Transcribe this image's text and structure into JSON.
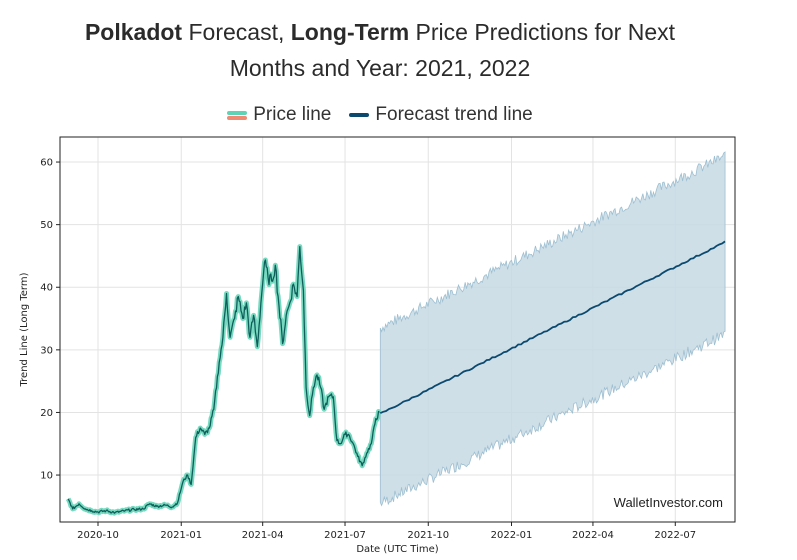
{
  "title": {
    "part1_bold": "Polkadot",
    "part2": " Forecast, ",
    "part3_bold": "Long-Term",
    "part4": " Price Predictions for Next",
    "line2": "Months and Year: 2021, 2022"
  },
  "legend": {
    "price_label": "Price line",
    "forecast_label": "Forecast trend line"
  },
  "colors": {
    "price_line": "#0f5e5a",
    "price_glow": "#5fd3b5",
    "forecast_line": "#0b4a6e",
    "band_fill": "#c7d9e4",
    "band_edge": "#9dbfd1"
  },
  "chart_data": {
    "type": "line",
    "xlabel": "Date (UTC Time)",
    "ylabel": "Trend Line (Long Term)",
    "ylim": [
      2.5,
      64
    ],
    "xlim": [
      "2020-08-20",
      "2022-09-05"
    ],
    "grid": true,
    "legend_position": "top",
    "y_ticks": [
      10,
      20,
      30,
      40,
      50,
      60
    ],
    "x_ticks": [
      {
        "date": "2020-10-01",
        "label": "2020-10"
      },
      {
        "date": "2021-01-01",
        "label": "2021-01"
      },
      {
        "date": "2021-04-01",
        "label": "2021-04"
      },
      {
        "date": "2021-07-01",
        "label": "2021-07"
      },
      {
        "date": "2021-10-01",
        "label": "2021-10"
      },
      {
        "date": "2022-01-01",
        "label": "2022-01"
      },
      {
        "date": "2022-04-01",
        "label": "2022-04"
      },
      {
        "date": "2022-07-01",
        "label": "2022-07"
      }
    ],
    "series": [
      {
        "name": "Price line",
        "points": [
          [
            "2020-08-29",
            6.2
          ],
          [
            "2020-09-03",
            4.6
          ],
          [
            "2020-09-10",
            5.4
          ],
          [
            "2020-09-17",
            4.6
          ],
          [
            "2020-09-24",
            4.3
          ],
          [
            "2020-10-01",
            4.1
          ],
          [
            "2020-10-10",
            4.3
          ],
          [
            "2020-10-20",
            4.0
          ],
          [
            "2020-10-31",
            4.3
          ],
          [
            "2020-11-10",
            4.5
          ],
          [
            "2020-11-20",
            4.6
          ],
          [
            "2020-11-27",
            5.4
          ],
          [
            "2020-12-05",
            5.0
          ],
          [
            "2020-12-15",
            5.2
          ],
          [
            "2020-12-22",
            4.9
          ],
          [
            "2020-12-28",
            5.6
          ],
          [
            "2021-01-03",
            9.0
          ],
          [
            "2021-01-08",
            10.0
          ],
          [
            "2021-01-12",
            8.5
          ],
          [
            "2021-01-17",
            16.0
          ],
          [
            "2021-01-22",
            17.5
          ],
          [
            "2021-01-27",
            16.5
          ],
          [
            "2021-02-01",
            17.5
          ],
          [
            "2021-02-06",
            20.5
          ],
          [
            "2021-02-12",
            28.0
          ],
          [
            "2021-02-16",
            32.0
          ],
          [
            "2021-02-20",
            39.0
          ],
          [
            "2021-02-24",
            32.0
          ],
          [
            "2021-03-01",
            35.0
          ],
          [
            "2021-03-05",
            38.5
          ],
          [
            "2021-03-10",
            35.0
          ],
          [
            "2021-03-14",
            37.5
          ],
          [
            "2021-03-18",
            32.0
          ],
          [
            "2021-03-22",
            35.5
          ],
          [
            "2021-03-26",
            30.5
          ],
          [
            "2021-03-30",
            37.5
          ],
          [
            "2021-04-03",
            44.0
          ],
          [
            "2021-04-07",
            41.5
          ],
          [
            "2021-04-11",
            41.0
          ],
          [
            "2021-04-15",
            43.5
          ],
          [
            "2021-04-19",
            37.0
          ],
          [
            "2021-04-23",
            31.0
          ],
          [
            "2021-04-27",
            35.5
          ],
          [
            "2021-05-01",
            37.5
          ],
          [
            "2021-05-05",
            40.5
          ],
          [
            "2021-05-09",
            38.5
          ],
          [
            "2021-05-12",
            46.5
          ],
          [
            "2021-05-16",
            39.5
          ],
          [
            "2021-05-19",
            24.0
          ],
          [
            "2021-05-23",
            19.5
          ],
          [
            "2021-05-27",
            24.0
          ],
          [
            "2021-05-31",
            26.0
          ],
          [
            "2021-06-04",
            24.0
          ],
          [
            "2021-06-08",
            20.5
          ],
          [
            "2021-06-13",
            22.5
          ],
          [
            "2021-06-18",
            22.5
          ],
          [
            "2021-06-22",
            15.5
          ],
          [
            "2021-06-26",
            15.0
          ],
          [
            "2021-07-01",
            16.5
          ],
          [
            "2021-07-05",
            16.5
          ],
          [
            "2021-07-10",
            15.0
          ],
          [
            "2021-07-15",
            13.0
          ],
          [
            "2021-07-20",
            11.5
          ],
          [
            "2021-07-25",
            13.5
          ],
          [
            "2021-07-30",
            15.0
          ],
          [
            "2021-08-04",
            19.0
          ],
          [
            "2021-08-08",
            20.0
          ]
        ]
      },
      {
        "name": "Forecast trend line",
        "points": [
          [
            "2021-08-09",
            19.8
          ],
          [
            "2022-08-25",
            47.2
          ]
        ],
        "lower": [
          [
            "2021-08-09",
            5.5
          ],
          [
            "2022-08-25",
            32.5
          ]
        ],
        "upper": [
          [
            "2021-08-09",
            33.5
          ],
          [
            "2022-08-25",
            61.0
          ]
        ]
      }
    ],
    "annotations": [
      "WalletInvestor.com"
    ]
  }
}
